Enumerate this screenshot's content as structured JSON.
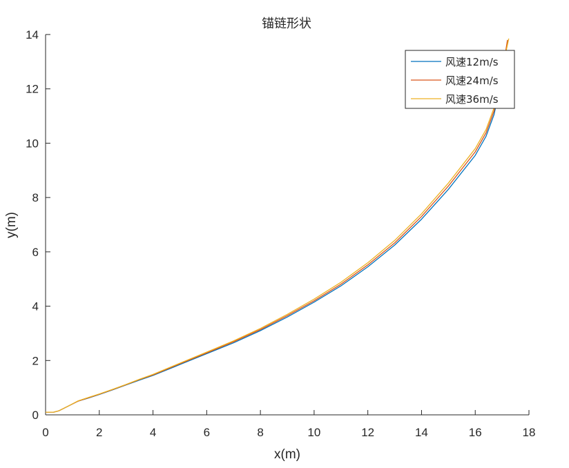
{
  "chart_data": {
    "type": "line",
    "title": "锚链形状",
    "xlabel": "x(m)",
    "ylabel": "y(m)",
    "xlim": [
      0,
      18
    ],
    "ylim": [
      0,
      14
    ],
    "xticks": [
      "0",
      "2",
      "4",
      "6",
      "8",
      "10",
      "12",
      "14",
      "16",
      "18"
    ],
    "yticks": [
      "0",
      "2",
      "4",
      "6",
      "8",
      "10",
      "12",
      "14"
    ],
    "grid": false,
    "legend_position": "top-right",
    "series": [
      {
        "name": "风速12m/s",
        "color": "#0072BD",
        "x": [
          0.0,
          0.3,
          0.5,
          0.8,
          1.2,
          1.6,
          2.0,
          2.5,
          3.0,
          3.5,
          4.0,
          5.0,
          6.0,
          7.0,
          8.0,
          9.0,
          10.0,
          11.0,
          12.0,
          13.0,
          14.0,
          15.0,
          16.0,
          16.4,
          16.7,
          17.0,
          17.2
        ],
        "y": [
          0.1,
          0.1,
          0.15,
          0.3,
          0.5,
          0.62,
          0.75,
          0.92,
          1.1,
          1.28,
          1.45,
          1.85,
          2.25,
          2.65,
          3.1,
          3.6,
          4.15,
          4.75,
          5.45,
          6.25,
          7.2,
          8.3,
          9.55,
          10.25,
          11.05,
          12.4,
          13.75
        ]
      },
      {
        "name": "风速24m/s",
        "color": "#D95319",
        "x": [
          0.0,
          0.3,
          0.5,
          0.8,
          1.2,
          1.6,
          2.0,
          2.5,
          3.0,
          3.5,
          4.0,
          5.0,
          6.0,
          7.0,
          8.0,
          9.0,
          10.0,
          11.0,
          12.0,
          13.0,
          14.0,
          15.0,
          16.0,
          16.4,
          16.7,
          17.0,
          17.2
        ],
        "y": [
          0.1,
          0.1,
          0.15,
          0.3,
          0.5,
          0.63,
          0.76,
          0.93,
          1.11,
          1.3,
          1.47,
          1.88,
          2.28,
          2.69,
          3.14,
          3.65,
          4.2,
          4.81,
          5.52,
          6.33,
          7.3,
          8.42,
          9.68,
          10.38,
          11.18,
          12.55,
          13.8
        ]
      },
      {
        "name": "风速36m/s",
        "color": "#EDB120",
        "x": [
          0.0,
          0.3,
          0.5,
          0.8,
          1.2,
          1.6,
          2.0,
          2.5,
          3.0,
          3.5,
          4.0,
          5.0,
          6.0,
          7.0,
          8.0,
          9.0,
          10.0,
          11.0,
          12.0,
          13.0,
          14.0,
          15.0,
          16.0,
          16.4,
          16.7,
          17.0,
          17.25
        ],
        "y": [
          0.1,
          0.1,
          0.15,
          0.3,
          0.51,
          0.64,
          0.77,
          0.94,
          1.12,
          1.31,
          1.49,
          1.9,
          2.31,
          2.72,
          3.18,
          3.7,
          4.26,
          4.88,
          5.6,
          6.42,
          7.4,
          8.53,
          9.8,
          10.5,
          11.3,
          12.7,
          13.85
        ]
      }
    ]
  }
}
